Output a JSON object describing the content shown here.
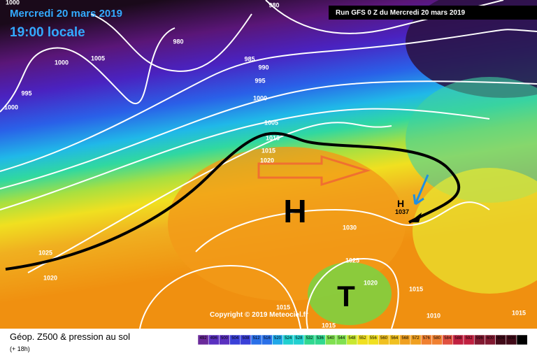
{
  "header": {
    "date": "Mercredi 20 mars 2019",
    "time": "19:00 locale",
    "run": "Run GFS 0 Z du Mercredi 20 mars 2019"
  },
  "isobar_labels": [
    1000,
    980,
    980,
    1005,
    1000,
    995,
    985,
    990,
    995,
    1000,
    1005,
    1010,
    1015,
    1020,
    1025,
    1020,
    1030,
    1025,
    1020,
    1015,
    1015,
    1010,
    1015,
    1015,
    1000
  ],
  "symbols": {
    "high": "H",
    "low": "T",
    "center": "H",
    "center_value": "1037"
  },
  "copyright": "Copyright © 2019 Meteociel.fr",
  "legend": {
    "title": "Géop. Z500 & pression au sol",
    "lead": "(+ 18h)",
    "scale": [
      492,
      496,
      500,
      504,
      508,
      512,
      516,
      520,
      524,
      528,
      532,
      536,
      540,
      544,
      548,
      552,
      556,
      560,
      564,
      568,
      572,
      576,
      580,
      584,
      588,
      592,
      596,
      600,
      604,
      608,
      612
    ]
  }
}
